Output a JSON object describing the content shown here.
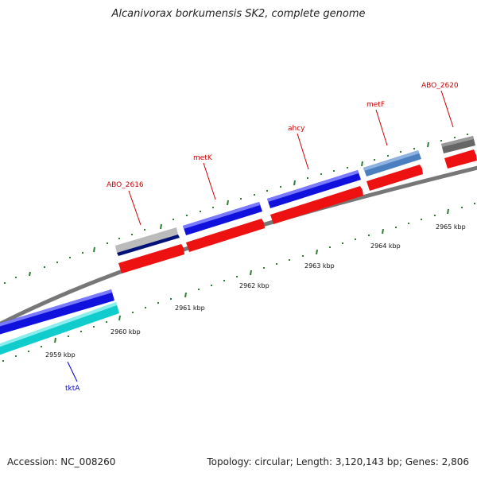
{
  "title": "Alcanivorax borkumensis SK2, complete genome",
  "accession": "Accession: NC_008260",
  "summary": "Topology: circular; Length: 3,120,143 bp; Genes: 2,806",
  "colors": {
    "backbone": "#777777",
    "ticks": "#2e7d32",
    "cds_forward": "#1111dd",
    "cds_reverse": "#ee1111",
    "label_red": "#cc0000",
    "label_blue": "#0000cc",
    "cyan": "#11cccc",
    "gray": "#666666",
    "light_gray": "#bbbbbb",
    "navy": "#001177",
    "steel_blue": "#4b7fbf"
  },
  "tick_labels": [
    "2959 kbp",
    "2960 kbp",
    "2961 kbp",
    "2962 kbp",
    "2963 kbp",
    "2964 kbp",
    "2965 kbp"
  ],
  "gene_labels": [
    "tktA",
    "ABO_2616",
    "metK",
    "ahcy",
    "metF",
    "ABO_2620"
  ]
}
